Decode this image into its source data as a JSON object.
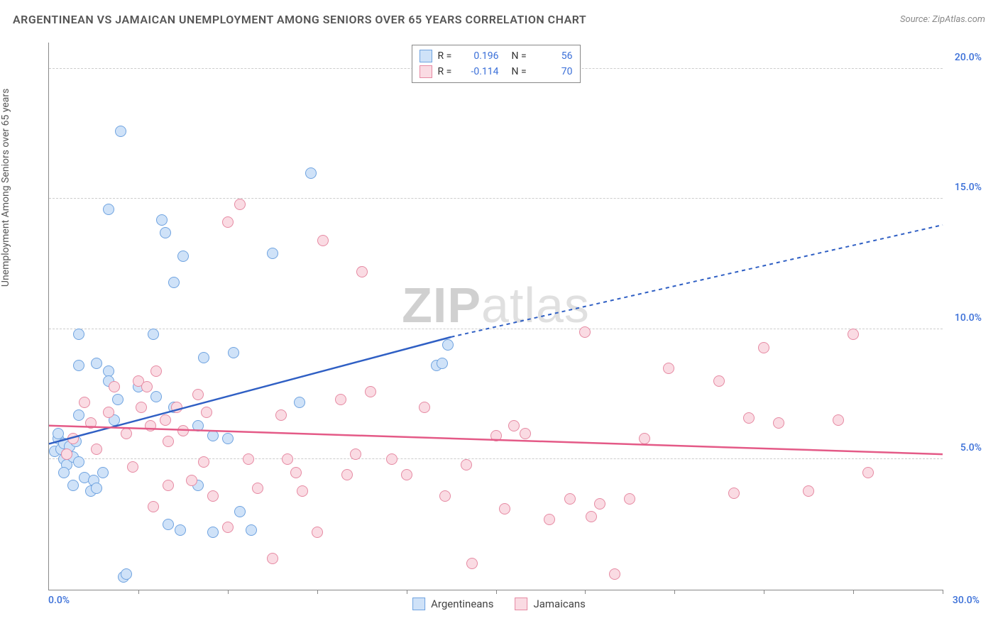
{
  "title": "ARGENTINEAN VS JAMAICAN UNEMPLOYMENT AMONG SENIORS OVER 65 YEARS CORRELATION CHART",
  "source": "Source: ZipAtlas.com",
  "y_axis_label": "Unemployment Among Seniors over 65 years",
  "watermark_bold": "ZIP",
  "watermark_rest": "atlas",
  "chart": {
    "type": "scatter",
    "background_color": "#ffffff",
    "grid_color": "#cccccc",
    "axis_color": "#888888",
    "xlim": [
      0,
      30
    ],
    "ylim": [
      0,
      21
    ],
    "x_ticks": [
      3,
      6,
      9,
      12,
      15,
      18,
      21,
      24,
      27,
      30
    ],
    "y_grid": [
      {
        "value": 5,
        "label": "5.0%"
      },
      {
        "value": 10,
        "label": "10.0%"
      },
      {
        "value": 15,
        "label": "15.0%"
      },
      {
        "value": 20,
        "label": "20.0%"
      }
    ],
    "origin_label": "0.0%",
    "x_end_label": "30.0%",
    "tick_label_color": "#3a6fd8",
    "origin_label_color": "#3a6fd8",
    "marker_radius": 8,
    "marker_stroke_width": 1.2,
    "series": [
      {
        "name": "Argentineans",
        "fill_color": "#cfe2f8",
        "stroke_color": "#6fa3e0",
        "line_color": "#2f5fc4",
        "R": "0.196",
        "N": "56",
        "regression": {
          "x1": 0,
          "y1": 5.6,
          "x2": 13.5,
          "y2": 9.7,
          "x2_ext": 30,
          "y2_ext": 14.0
        },
        "points": [
          [
            0.2,
            5.3
          ],
          [
            0.3,
            5.8
          ],
          [
            0.4,
            5.4
          ],
          [
            0.3,
            6.0
          ],
          [
            0.5,
            5.0
          ],
          [
            0.5,
            5.6
          ],
          [
            0.6,
            5.2
          ],
          [
            0.6,
            4.8
          ],
          [
            0.7,
            5.5
          ],
          [
            0.8,
            5.1
          ],
          [
            0.9,
            5.7
          ],
          [
            0.5,
            4.5
          ],
          [
            1.0,
            4.9
          ],
          [
            1.0,
            6.7
          ],
          [
            0.8,
            4.0
          ],
          [
            1.2,
            4.3
          ],
          [
            1.4,
            3.8
          ],
          [
            1.5,
            4.2
          ],
          [
            1.6,
            3.9
          ],
          [
            1.8,
            4.5
          ],
          [
            2.0,
            8.4
          ],
          [
            2.4,
            17.6
          ],
          [
            2.0,
            14.6
          ],
          [
            1.6,
            8.7
          ],
          [
            1.0,
            9.8
          ],
          [
            1.0,
            8.6
          ],
          [
            2.0,
            8.0
          ],
          [
            2.2,
            6.5
          ],
          [
            2.3,
            7.3
          ],
          [
            3.8,
            14.2
          ],
          [
            3.9,
            13.7
          ],
          [
            4.5,
            12.8
          ],
          [
            4.2,
            11.8
          ],
          [
            3.5,
            9.8
          ],
          [
            3.0,
            7.8
          ],
          [
            3.6,
            7.4
          ],
          [
            4.2,
            7.0
          ],
          [
            5.0,
            6.3
          ],
          [
            5.2,
            8.9
          ],
          [
            5.5,
            5.9
          ],
          [
            4.0,
            2.5
          ],
          [
            4.4,
            2.3
          ],
          [
            5.5,
            2.2
          ],
          [
            6.0,
            5.8
          ],
          [
            6.2,
            9.1
          ],
          [
            6.4,
            3.0
          ],
          [
            6.8,
            2.3
          ],
          [
            7.5,
            12.9
          ],
          [
            8.8,
            16.0
          ],
          [
            8.4,
            7.2
          ],
          [
            13.0,
            8.6
          ],
          [
            13.2,
            8.7
          ],
          [
            13.4,
            9.4
          ],
          [
            2.5,
            0.5
          ],
          [
            2.6,
            0.6
          ],
          [
            5.0,
            4.0
          ]
        ]
      },
      {
        "name": "Jamaicans",
        "fill_color": "#fadbe3",
        "stroke_color": "#e68aa3",
        "line_color": "#e45a87",
        "R": "-0.114",
        "N": "70",
        "regression": {
          "x1": 0,
          "y1": 6.3,
          "x2": 30,
          "y2": 5.2,
          "x2_ext": 30,
          "y2_ext": 5.2
        },
        "points": [
          [
            0.6,
            5.2
          ],
          [
            0.8,
            5.8
          ],
          [
            1.2,
            7.2
          ],
          [
            1.4,
            6.4
          ],
          [
            1.6,
            5.4
          ],
          [
            2.0,
            6.8
          ],
          [
            2.2,
            7.8
          ],
          [
            2.6,
            6.0
          ],
          [
            3.0,
            8.0
          ],
          [
            3.1,
            7.0
          ],
          [
            3.3,
            7.8
          ],
          [
            3.4,
            6.3
          ],
          [
            3.6,
            8.4
          ],
          [
            3.9,
            6.5
          ],
          [
            4.0,
            5.7
          ],
          [
            4.3,
            7.0
          ],
          [
            4.5,
            6.1
          ],
          [
            5.0,
            7.5
          ],
          [
            5.2,
            4.9
          ],
          [
            5.3,
            6.8
          ],
          [
            5.5,
            3.6
          ],
          [
            6.0,
            2.4
          ],
          [
            6.0,
            14.1
          ],
          [
            6.4,
            14.8
          ],
          [
            6.7,
            5.0
          ],
          [
            7.0,
            3.9
          ],
          [
            7.5,
            1.2
          ],
          [
            8.0,
            5.0
          ],
          [
            8.3,
            4.5
          ],
          [
            8.5,
            3.8
          ],
          [
            9.2,
            13.4
          ],
          [
            9.8,
            7.3
          ],
          [
            10.0,
            4.4
          ],
          [
            10.3,
            5.2
          ],
          [
            10.5,
            12.2
          ],
          [
            10.8,
            7.6
          ],
          [
            11.5,
            5.0
          ],
          [
            12.0,
            4.4
          ],
          [
            13.3,
            3.6
          ],
          [
            14.0,
            4.8
          ],
          [
            14.2,
            1.0
          ],
          [
            15.0,
            5.9
          ],
          [
            15.3,
            3.1
          ],
          [
            15.6,
            6.3
          ],
          [
            16.8,
            2.7
          ],
          [
            17.5,
            3.5
          ],
          [
            18.0,
            9.9
          ],
          [
            18.2,
            2.8
          ],
          [
            18.5,
            3.3
          ],
          [
            19.0,
            0.6
          ],
          [
            19.5,
            3.5
          ],
          [
            20.0,
            5.8
          ],
          [
            20.8,
            8.5
          ],
          [
            22.5,
            8.0
          ],
          [
            23.0,
            3.7
          ],
          [
            23.5,
            6.6
          ],
          [
            24.0,
            9.3
          ],
          [
            24.5,
            6.4
          ],
          [
            25.5,
            3.8
          ],
          [
            26.5,
            6.5
          ],
          [
            27.0,
            9.8
          ],
          [
            27.5,
            4.5
          ],
          [
            2.8,
            4.7
          ],
          [
            3.5,
            3.2
          ],
          [
            4.8,
            4.2
          ],
          [
            7.8,
            6.7
          ],
          [
            9.0,
            2.2
          ],
          [
            12.6,
            7.0
          ],
          [
            16.0,
            6.0
          ],
          [
            4.0,
            4.0
          ]
        ]
      }
    ]
  },
  "legend_bottom": [
    {
      "label": "Argentineans",
      "series": 0
    },
    {
      "label": "Jamaicans",
      "series": 1
    }
  ]
}
